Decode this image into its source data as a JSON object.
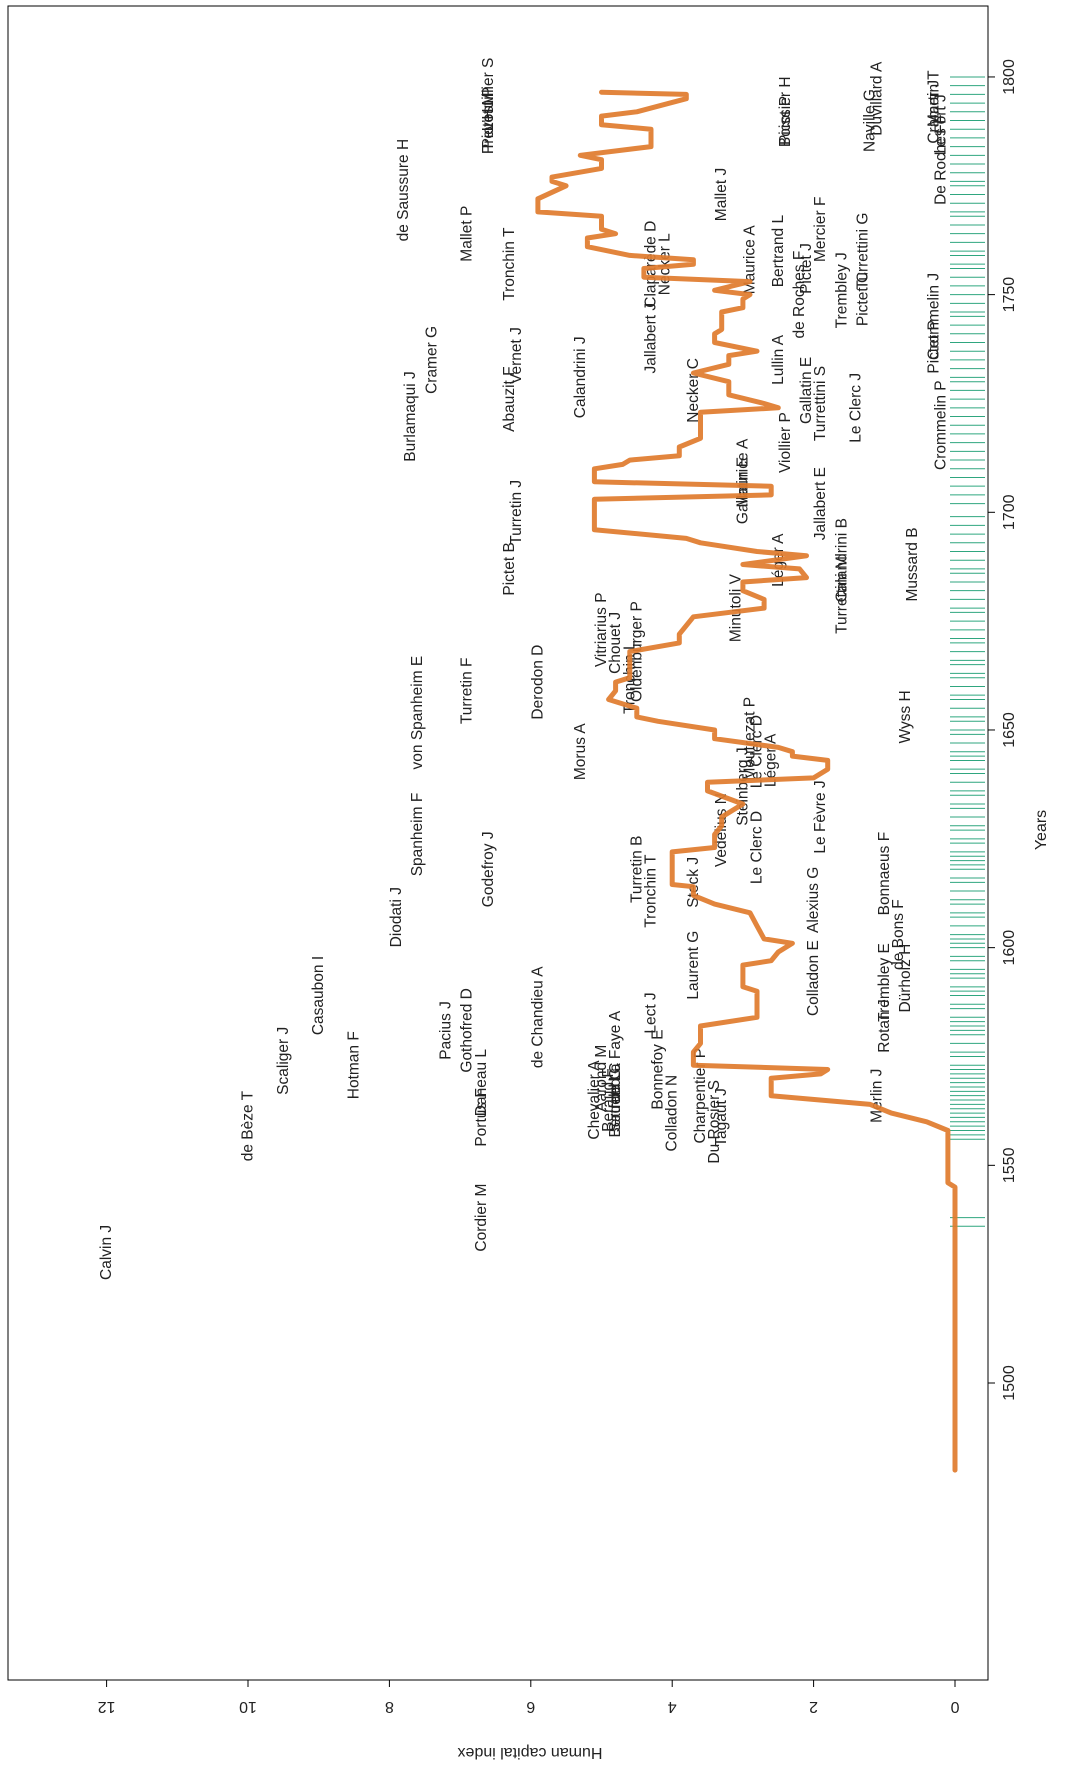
{
  "chart_data": {
    "type": "line",
    "orientation": "rotated-90-clockwise",
    "title": "",
    "xlabel": "Years",
    "ylabel": "Human capital index",
    "xlim": [
      1480,
      1810
    ],
    "ylim": [
      0,
      13
    ],
    "x_ticks": [
      1500,
      1550,
      1600,
      1650,
      1700,
      1750,
      1800
    ],
    "y_ticks": [
      0,
      2,
      4,
      6,
      8,
      10,
      12
    ],
    "grid": false,
    "legend": "none",
    "colors": {
      "line": "#e07b2c",
      "rug": "#2fa67f",
      "axis": "#000000",
      "text": "#222222"
    },
    "series": [
      {
        "values": [
          [
            1480,
            0
          ],
          [
            1545,
            0
          ],
          [
            1546,
            0.1
          ],
          [
            1558,
            0.1
          ],
          [
            1560,
            0.4
          ],
          [
            1562,
            0.9
          ],
          [
            1564,
            1.2
          ],
          [
            1566,
            2.6
          ],
          [
            1570,
            2.6
          ],
          [
            1571,
            1.9
          ],
          [
            1572,
            1.8
          ],
          [
            1573,
            3.7
          ],
          [
            1576,
            3.7
          ],
          [
            1578,
            3.6
          ],
          [
            1582,
            3.6
          ],
          [
            1584,
            2.8
          ],
          [
            1587,
            2.8
          ],
          [
            1588,
            2.8
          ],
          [
            1590,
            2.8
          ],
          [
            1591,
            3.0
          ],
          [
            1594,
            3.0
          ],
          [
            1596,
            3.0
          ],
          [
            1597,
            2.6
          ],
          [
            1599,
            2.5
          ],
          [
            1601,
            2.3
          ],
          [
            1602,
            2.7
          ],
          [
            1605,
            2.8
          ],
          [
            1608,
            2.9
          ],
          [
            1610,
            3.4
          ],
          [
            1612,
            3.7
          ],
          [
            1614,
            3.7
          ],
          [
            1614.5,
            4.0
          ],
          [
            1616,
            4.0
          ],
          [
            1622,
            4.0
          ],
          [
            1623,
            3.4
          ],
          [
            1626,
            3.4
          ],
          [
            1628,
            3.3
          ],
          [
            1630,
            3.3
          ],
          [
            1633,
            3.0
          ],
          [
            1636,
            3.5
          ],
          [
            1638,
            3.5
          ],
          [
            1639,
            2.0
          ],
          [
            1641,
            1.8
          ],
          [
            1643,
            1.8
          ],
          [
            1644,
            2.3
          ],
          [
            1645,
            2.3
          ],
          [
            1646,
            2.5
          ],
          [
            1648,
            3.4
          ],
          [
            1650,
            3.4
          ],
          [
            1652,
            4.2
          ],
          [
            1653,
            4.5
          ],
          [
            1655,
            4.5
          ],
          [
            1657,
            4.9
          ],
          [
            1659,
            4.8
          ],
          [
            1661,
            4.8
          ],
          [
            1662,
            4.6
          ],
          [
            1668,
            4.6
          ],
          [
            1670,
            3.9
          ],
          [
            1672,
            3.9
          ],
          [
            1676,
            3.7
          ],
          [
            1678,
            2.7
          ],
          [
            1680,
            2.7
          ],
          [
            1682,
            3.0
          ],
          [
            1684,
            3.0
          ],
          [
            1685,
            2.1
          ],
          [
            1687,
            2.2
          ],
          [
            1688,
            3.0
          ],
          [
            1690,
            2.1
          ],
          [
            1691,
            2.8
          ],
          [
            1693,
            3.6
          ],
          [
            1694,
            3.8
          ],
          [
            1696,
            5.1
          ],
          [
            1701,
            5.1
          ],
          [
            1702,
            5.1
          ],
          [
            1703,
            5.1
          ],
          [
            1704,
            2.6
          ],
          [
            1706,
            2.6
          ],
          [
            1707,
            5.1
          ],
          [
            1710,
            5.1
          ],
          [
            1711,
            4.7
          ],
          [
            1712,
            4.6
          ],
          [
            1713,
            3.9
          ],
          [
            1715,
            3.9
          ],
          [
            1717,
            3.6
          ],
          [
            1720,
            3.6
          ],
          [
            1723,
            3.6
          ],
          [
            1724,
            2.5
          ],
          [
            1725,
            2.7
          ],
          [
            1727,
            3.2
          ],
          [
            1730,
            3.2
          ],
          [
            1732,
            3.7
          ],
          [
            1734,
            3.2
          ],
          [
            1736,
            3.2
          ],
          [
            1737,
            2.8
          ],
          [
            1739,
            3.4
          ],
          [
            1741,
            3.4
          ],
          [
            1742,
            3.3
          ],
          [
            1744,
            3.3
          ],
          [
            1746,
            3.3
          ],
          [
            1747,
            3.0
          ],
          [
            1749,
            3.0
          ],
          [
            1750,
            2.9
          ],
          [
            1751,
            3.4
          ],
          [
            1753,
            2.9
          ],
          [
            1754,
            4.4
          ],
          [
            1756,
            4.4
          ],
          [
            1757,
            3.7
          ],
          [
            1758,
            3.7
          ],
          [
            1759,
            4.6
          ],
          [
            1761,
            5.2
          ],
          [
            1763,
            5.2
          ],
          [
            1764,
            4.8
          ],
          [
            1765,
            5.0
          ],
          [
            1768,
            5.0
          ],
          [
            1769,
            5.9
          ],
          [
            1772,
            5.9
          ],
          [
            1775,
            5.5
          ],
          [
            1776,
            5.7
          ],
          [
            1777,
            5.7
          ],
          [
            1779,
            5.0
          ],
          [
            1781,
            5.0
          ],
          [
            1782,
            5.3
          ],
          [
            1784,
            4.3
          ],
          [
            1786,
            4.3
          ],
          [
            1788,
            4.3
          ],
          [
            1789,
            5.0
          ],
          [
            1791,
            5.0
          ],
          [
            1792,
            4.5
          ],
          [
            1795,
            3.8
          ],
          [
            1796,
            3.8
          ],
          [
            1796.5,
            5.0
          ]
        ]
      }
    ],
    "rug_years": [
      1536,
      1538,
      1556,
      1557,
      1558,
      1559,
      1560,
      1561,
      1562,
      1563,
      1564,
      1565,
      1566,
      1567,
      1568,
      1569,
      1570,
      1571,
      1572,
      1573,
      1575,
      1576,
      1578,
      1580,
      1581,
      1582,
      1583,
      1584,
      1586,
      1587,
      1589,
      1590,
      1591,
      1593,
      1594,
      1595,
      1597,
      1598,
      1600,
      1601,
      1602,
      1603,
      1605,
      1607,
      1608,
      1610,
      1611,
      1613,
      1615,
      1616,
      1618,
      1619,
      1620,
      1621,
      1622,
      1624,
      1625,
      1627,
      1628,
      1630,
      1632,
      1633,
      1635,
      1636,
      1638,
      1640,
      1641,
      1643,
      1644,
      1645,
      1647,
      1649,
      1650,
      1652,
      1653,
      1655,
      1657,
      1658,
      1660,
      1662,
      1663,
      1665,
      1666,
      1668,
      1670,
      1671,
      1673,
      1675,
      1677,
      1678,
      1680,
      1682,
      1684,
      1686,
      1687,
      1689,
      1691,
      1693,
      1695,
      1697,
      1699,
      1702,
      1704,
      1706,
      1708,
      1710,
      1712,
      1714,
      1716,
      1718,
      1720,
      1722,
      1724,
      1726,
      1728,
      1730,
      1731,
      1733,
      1735,
      1737,
      1739,
      1741,
      1743,
      1745,
      1746,
      1748,
      1750,
      1752,
      1754,
      1756,
      1757,
      1759,
      1760,
      1762,
      1764,
      1766,
      1768,
      1769,
      1771,
      1773,
      1775,
      1776,
      1778,
      1780,
      1782,
      1784,
      1786,
      1788,
      1790,
      1792,
      1794,
      1796,
      1798,
      1800
    ],
    "annotations": [
      {
        "text": "Calvin J",
        "x": 1530,
        "y": 12.0
      },
      {
        "text": "de Bèze T",
        "x": 1559,
        "y": 10.0
      },
      {
        "text": "Scaliger J",
        "x": 1574,
        "y": 9.5
      },
      {
        "text": "Casaubon I",
        "x": 1589,
        "y": 9.0
      },
      {
        "text": "Hotman F",
        "x": 1573,
        "y": 8.5
      },
      {
        "text": "Diodati J",
        "x": 1607,
        "y": 7.9
      },
      {
        "text": "Spanheim F",
        "x": 1626,
        "y": 7.6
      },
      {
        "text": "von Spanheim E",
        "x": 1654,
        "y": 7.6
      },
      {
        "text": "Godefroy J",
        "x": 1618,
        "y": 6.6
      },
      {
        "text": "Turretin F",
        "x": 1659,
        "y": 6.9
      },
      {
        "text": "Derodon D",
        "x": 1661,
        "y": 5.9
      },
      {
        "text": "Burlamaqui J",
        "x": 1722,
        "y": 7.7
      },
      {
        "text": "Cramer G",
        "x": 1735,
        "y": 7.4
      },
      {
        "text": "de Saussure H",
        "x": 1774,
        "y": 7.8
      },
      {
        "text": "Mallet P",
        "x": 1764,
        "y": 6.9
      },
      {
        "text": "Pictet M",
        "x": 1790,
        "y": 6.6
      },
      {
        "text": "L'Huillier S",
        "x": 1796,
        "y": 6.6
      },
      {
        "text": "Prevost P",
        "x": 1790,
        "y": 6.6
      },
      {
        "text": "Tronchin T",
        "x": 1757,
        "y": 6.3
      },
      {
        "text": "Abauzit F",
        "x": 1726,
        "y": 6.3
      },
      {
        "text": "Vernet J",
        "x": 1736,
        "y": 6.2
      },
      {
        "text": "Pictet B",
        "x": 1687,
        "y": 6.3
      },
      {
        "text": "Turretin J",
        "x": 1700,
        "y": 6.2
      },
      {
        "text": "Cordier M",
        "x": 1538,
        "y": 6.7
      },
      {
        "text": "Pacius J",
        "x": 1581,
        "y": 7.2
      },
      {
        "text": "Gothofred D",
        "x": 1581,
        "y": 6.9
      },
      {
        "text": "Daneau L",
        "x": 1569,
        "y": 6.7
      },
      {
        "text": "Portus F",
        "x": 1561,
        "y": 6.7
      },
      {
        "text": "de Chandieu A",
        "x": 1584,
        "y": 5.9
      },
      {
        "text": "Morus A",
        "x": 1645,
        "y": 5.3
      },
      {
        "text": "Vitriarius P",
        "x": 1673,
        "y": 5.0
      },
      {
        "text": "Chouet J",
        "x": 1670,
        "y": 4.8
      },
      {
        "text": "Oldenburger P",
        "x": 1668,
        "y": 4.5
      },
      {
        "text": "Tronchin L",
        "x": 1662,
        "y": 4.6
      },
      {
        "text": "Calandrini J",
        "x": 1731,
        "y": 5.3
      },
      {
        "text": "Jallabert J",
        "x": 1740,
        "y": 4.3
      },
      {
        "text": "Claparède D",
        "x": 1757,
        "y": 4.3
      },
      {
        "text": "Necker L",
        "x": 1757,
        "y": 4.1
      },
      {
        "text": "Necker C",
        "x": 1728,
        "y": 3.7
      },
      {
        "text": "Mallet J",
        "x": 1773,
        "y": 3.3
      },
      {
        "text": "Maurice A",
        "x": 1758,
        "y": 2.9
      },
      {
        "text": "Lullin A",
        "x": 1735,
        "y": 2.5
      },
      {
        "text": "Bertrand L",
        "x": 1760,
        "y": 2.5
      },
      {
        "text": "de Roches F",
        "x": 1750,
        "y": 2.2
      },
      {
        "text": "Pictet J",
        "x": 1756,
        "y": 2.1
      },
      {
        "text": "Mercier F",
        "x": 1765,
        "y": 1.9
      },
      {
        "text": "Trembley J",
        "x": 1751,
        "y": 1.6
      },
      {
        "text": "Pictet C",
        "x": 1749,
        "y": 1.3
      },
      {
        "text": "Turrettini G",
        "x": 1760,
        "y": 1.3
      },
      {
        "text": "Gallatin E",
        "x": 1728,
        "y": 2.1
      },
      {
        "text": "Turrettini S",
        "x": 1725,
        "y": 1.9
      },
      {
        "text": "Le Clerc J",
        "x": 1724,
        "y": 1.4
      },
      {
        "text": "Viollier P",
        "x": 1716,
        "y": 2.4
      },
      {
        "text": "Maurice A",
        "x": 1709,
        "y": 3.0
      },
      {
        "text": "Gallatin E",
        "x": 1705,
        "y": 3.0
      },
      {
        "text": "Jallabert E",
        "x": 1702,
        "y": 1.9
      },
      {
        "text": "Calandrini B",
        "x": 1689,
        "y": 1.6
      },
      {
        "text": "Turrettini M",
        "x": 1681,
        "y": 1.6
      },
      {
        "text": "Léger A",
        "x": 1689,
        "y": 2.5
      },
      {
        "text": "Minutoli V",
        "x": 1678,
        "y": 3.1
      },
      {
        "text": "Mussard B",
        "x": 1688,
        "y": 0.6
      },
      {
        "text": "Crommelin P",
        "x": 1720,
        "y": 0.2
      },
      {
        "text": "Pictet P",
        "x": 1738,
        "y": 0.3
      },
      {
        "text": "Crommelin J",
        "x": 1745,
        "y": 0.3
      },
      {
        "text": "Naville G",
        "x": 1790,
        "y": 1.2
      },
      {
        "text": "Duvillard A",
        "x": 1795,
        "y": 1.1
      },
      {
        "text": "Boissier H",
        "x": 1792,
        "y": 2.4
      },
      {
        "text": "Picot P",
        "x": 1790,
        "y": 2.4
      },
      {
        "text": "Martin T",
        "x": 1795,
        "y": 0.3
      },
      {
        "text": "Cramer J",
        "x": 1792,
        "y": 0.3
      },
      {
        "text": "Le Fort J",
        "x": 1789,
        "y": 0.2
      },
      {
        "text": "De Roches F",
        "x": 1781,
        "y": 0.2
      },
      {
        "text": "Wyss H",
        "x": 1653,
        "y": 0.7
      },
      {
        "text": "Moutrezat P",
        "x": 1648,
        "y": 2.9
      },
      {
        "text": "Le Clerc D",
        "x": 1645,
        "y": 2.8
      },
      {
        "text": "Léger A",
        "x": 1643,
        "y": 2.6
      },
      {
        "text": "Steinberg J",
        "x": 1637,
        "y": 3.0
      },
      {
        "text": "Vedelius N",
        "x": 1627,
        "y": 3.3
      },
      {
        "text": "Le Clerc D",
        "x": 1623,
        "y": 2.8
      },
      {
        "text": "Le Fèvre J",
        "x": 1630,
        "y": 1.9
      },
      {
        "text": "Turretin B",
        "x": 1618,
        "y": 4.5
      },
      {
        "text": "Tronchin T",
        "x": 1613,
        "y": 4.3
      },
      {
        "text": "Steck J",
        "x": 1615,
        "y": 3.7
      },
      {
        "text": "Alexius G",
        "x": 1611,
        "y": 2.0
      },
      {
        "text": "Laurent G",
        "x": 1596,
        "y": 3.7
      },
      {
        "text": "Colladon E",
        "x": 1593,
        "y": 2.0
      },
      {
        "text": "Bonnaeus F",
        "x": 1617,
        "y": 1.0
      },
      {
        "text": "de Bons F",
        "x": 1603,
        "y": 0.8
      },
      {
        "text": "Trembley E",
        "x": 1592,
        "y": 1.0
      },
      {
        "text": "Dürholz H",
        "x": 1593,
        "y": 0.7
      },
      {
        "text": "Rotan J",
        "x": 1582,
        "y": 1.0
      },
      {
        "text": "Merlin J",
        "x": 1566,
        "y": 1.1
      },
      {
        "text": "Lect J",
        "x": 1585,
        "y": 4.3
      },
      {
        "text": "Bonnefoy E",
        "x": 1572,
        "y": 4.2
      },
      {
        "text": "Colladon N",
        "x": 1562,
        "y": 4.0
      },
      {
        "text": "Charpentier P",
        "x": 1566,
        "y": 3.6
      },
      {
        "text": "Du Rosier S",
        "x": 1560,
        "y": 3.4
      },
      {
        "text": "Tagaut J",
        "x": 1561,
        "y": 3.3
      },
      {
        "text": "Chevalier A",
        "x": 1565,
        "y": 5.1
      },
      {
        "text": "Aarond M",
        "x": 1570,
        "y": 5.0
      },
      {
        "text": "Beraud F",
        "x": 1565,
        "y": 4.9
      },
      {
        "text": "Bertrand C",
        "x": 1565,
        "y": 4.8
      },
      {
        "text": "Sadeel G",
        "x": 1565,
        "y": 4.8
      },
      {
        "text": "de La Faye A",
        "x": 1575,
        "y": 4.8
      }
    ]
  }
}
